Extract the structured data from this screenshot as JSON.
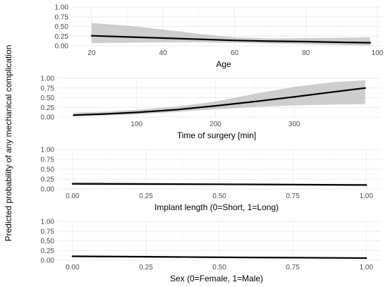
{
  "figure": {
    "ylabel": "Predicted probability of any mechanical complication"
  },
  "colors": {
    "band": "#bebebe",
    "line": "#000000",
    "grid": "#ebebeb",
    "tick_text": "#4d4d4d"
  },
  "chart_data": [
    {
      "type": "line",
      "name": "age",
      "xlabel": "Age",
      "ylabel": "",
      "xlim": [
        14.5,
        101
      ],
      "ylim": [
        0,
        1
      ],
      "xticks": [
        20,
        40,
        60,
        80,
        100
      ],
      "xtick_labels": [
        "20",
        "40",
        "60",
        "80",
        "100"
      ],
      "yticks": [
        0,
        0.25,
        0.5,
        0.75,
        1
      ],
      "ytick_labels": [
        "0.00",
        "0.25",
        "0.50",
        "0.75",
        "1.00"
      ],
      "grid": true,
      "series": [
        {
          "x": [
            20,
            30,
            40,
            50,
            60,
            70,
            80,
            90,
            98
          ],
          "y": [
            0.26,
            0.23,
            0.2,
            0.17,
            0.14,
            0.12,
            0.11,
            0.09,
            0.08
          ],
          "lower": [
            0.07,
            0.08,
            0.09,
            0.09,
            0.08,
            0.06,
            0.04,
            0.02,
            0.01
          ],
          "upper": [
            0.59,
            0.52,
            0.42,
            0.31,
            0.22,
            0.19,
            0.2,
            0.21,
            0.22
          ]
        }
      ]
    },
    {
      "type": "line",
      "name": "time-of-surgery",
      "xlabel": "Time of surgery [min]",
      "ylabel": "",
      "xlim": [
        0,
        410
      ],
      "ylim": [
        0,
        1
      ],
      "xticks": [
        100,
        200,
        300
      ],
      "xtick_labels": [
        "100",
        "200",
        "300"
      ],
      "yticks": [
        0,
        0.25,
        0.5,
        0.75,
        1
      ],
      "ytick_labels": [
        "0.00",
        "0.25",
        "0.50",
        "0.75",
        "1.00"
      ],
      "grid": true,
      "series": [
        {
          "x": [
            20,
            60,
            100,
            150,
            200,
            250,
            300,
            350,
            390
          ],
          "y": [
            0.05,
            0.08,
            0.12,
            0.19,
            0.29,
            0.4,
            0.52,
            0.65,
            0.75
          ],
          "lower": [
            0.02,
            0.04,
            0.07,
            0.13,
            0.2,
            0.26,
            0.3,
            0.32,
            0.33
          ],
          "upper": [
            0.11,
            0.14,
            0.19,
            0.27,
            0.4,
            0.6,
            0.78,
            0.9,
            0.95
          ]
        }
      ]
    },
    {
      "type": "line",
      "name": "implant-length",
      "xlabel": "Implant length (0=Short, 1=Long)",
      "ylabel": "",
      "xlim": [
        -0.05,
        1.05
      ],
      "ylim": [
        0,
        1
      ],
      "xticks": [
        0,
        0.25,
        0.5,
        0.75,
        1
      ],
      "xtick_labels": [
        "0.00",
        "0.25",
        "0.50",
        "0.75",
        "1.00"
      ],
      "yticks": [
        0,
        0.25,
        0.5,
        0.75,
        1
      ],
      "ytick_labels": [
        "0.00",
        "0.25",
        "0.50",
        "0.75",
        "1.00"
      ],
      "grid": true,
      "series": [
        {
          "x": [
            0,
            0.25,
            0.5,
            0.75,
            1
          ],
          "y": [
            0.13,
            0.125,
            0.12,
            0.11,
            0.1
          ],
          "lower": [
            0.1,
            0.1,
            0.1,
            0.09,
            0.08
          ],
          "upper": [
            0.17,
            0.155,
            0.14,
            0.135,
            0.13
          ]
        }
      ]
    },
    {
      "type": "line",
      "name": "sex",
      "xlabel": "Sex (0=Female, 1=Male)",
      "ylabel": "",
      "xlim": [
        -0.05,
        1.05
      ],
      "ylim": [
        0,
        1
      ],
      "xticks": [
        0,
        0.25,
        0.5,
        0.75,
        1
      ],
      "xtick_labels": [
        "0.00",
        "0.25",
        "0.50",
        "0.75",
        "1.00"
      ],
      "yticks": [
        0,
        0.25,
        0.5,
        0.75,
        1
      ],
      "ytick_labels": [
        "0.00",
        "0.25",
        "0.50",
        "0.75",
        "1.00"
      ],
      "grid": true,
      "series": [
        {
          "x": [
            0,
            0.25,
            0.5,
            0.75,
            1
          ],
          "y": [
            0.1,
            0.09,
            0.075,
            0.065,
            0.055
          ],
          "lower": [
            0.08,
            0.07,
            0.06,
            0.05,
            0.04
          ],
          "upper": [
            0.12,
            0.11,
            0.095,
            0.08,
            0.07
          ]
        }
      ]
    }
  ]
}
